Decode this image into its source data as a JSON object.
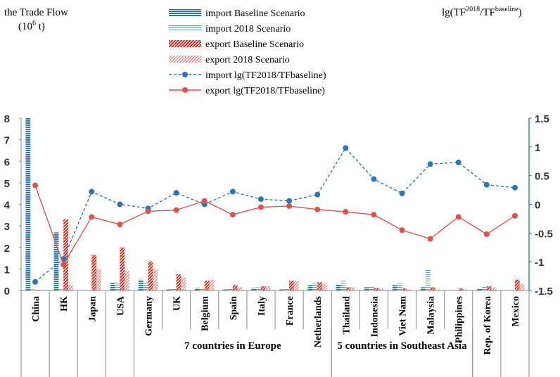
{
  "chart_data": {
    "type": "bar",
    "left_axis_title_line1": "the Trade Flow",
    "left_axis_title_line2": "(10",
    "left_axis_title_sup": "6",
    "left_axis_title_line2_end": " t)",
    "right_axis_title_pre": "lg(TF",
    "right_axis_title_sup1": "2018",
    "right_axis_title_mid": "/TF",
    "right_axis_title_sup2": "baseline",
    "right_axis_title_post": ")",
    "categories": [
      "China",
      "HK",
      "Japan",
      "USA",
      "Germany",
      "UK",
      "Belgium",
      "Spain",
      "Italy",
      "France",
      "Netherlands",
      "Thailand",
      "Indonesia",
      "Viet Nam",
      "Malaysia",
      "Philippines",
      "Rep. of Korea",
      "Mexico"
    ],
    "ylim_left": [
      0,
      8
    ],
    "yticks_left": [
      "0",
      "1",
      "2",
      "3",
      "4",
      "5",
      "6",
      "7",
      "8"
    ],
    "ylim_right": [
      -1.5,
      1.5
    ],
    "yticks_right": [
      "-1.5",
      "-1",
      "-0.5",
      "0",
      "0.5",
      "1",
      "1.5"
    ],
    "series": [
      {
        "name": "import Baseline Scenario",
        "kind": "bar",
        "color": "#2e75b6",
        "pattern": "hstripe-dense",
        "values": [
          8.0,
          2.7,
          0.0,
          0.35,
          0.5,
          0.05,
          0.12,
          0.05,
          0.12,
          0.05,
          0.25,
          0.3,
          0.15,
          0.25,
          0.15,
          0.0,
          0.1,
          0.0
        ]
      },
      {
        "name": "import 2018 Scenario",
        "kind": "bar",
        "color": "#5b9bd5",
        "pattern": "hstripe-light",
        "values": [
          0.05,
          0.05,
          0.0,
          0.35,
          0.4,
          0.08,
          0.1,
          0.07,
          0.15,
          0.08,
          0.35,
          0.5,
          0.22,
          0.35,
          0.95,
          0.0,
          0.2,
          0.0
        ]
      },
      {
        "name": "export Baseline Scenario",
        "kind": "bar",
        "color": "#c0392b",
        "pattern": "diag-dense",
        "values": [
          0.03,
          3.3,
          1.65,
          2.0,
          1.35,
          0.75,
          0.45,
          0.25,
          0.2,
          0.45,
          0.38,
          0.15,
          0.12,
          0.1,
          0.15,
          0.1,
          0.2,
          0.5
        ]
      },
      {
        "name": "export 2018 Scenario",
        "kind": "bar",
        "color": "#e57373",
        "pattern": "diag-light",
        "values": [
          0.02,
          0.25,
          1.0,
          0.9,
          1.0,
          0.6,
          0.5,
          0.15,
          0.2,
          0.45,
          0.3,
          0.15,
          0.08,
          0.05,
          0.05,
          0.05,
          0.15,
          0.3
        ]
      },
      {
        "name": "import lg(TF2018/TFbaseline)",
        "kind": "line",
        "axis": "right",
        "color": "#2e75b6",
        "dash": true,
        "values": [
          -1.35,
          -0.95,
          0.22,
          0.0,
          -0.07,
          0.2,
          0.0,
          0.22,
          0.09,
          0.06,
          0.17,
          0.98,
          0.44,
          0.19,
          0.7,
          0.73,
          0.34,
          0.29
        ]
      },
      {
        "name": "export lg(TF2018/TFbaseline)",
        "kind": "line",
        "axis": "right",
        "color": "#d9534f",
        "dash": false,
        "values": [
          0.33,
          -1.05,
          -0.22,
          -0.35,
          -0.12,
          -0.1,
          0.06,
          -0.18,
          -0.05,
          -0.03,
          -0.09,
          -0.13,
          -0.18,
          -0.45,
          -0.6,
          -0.22,
          -0.52,
          -0.2
        ]
      }
    ],
    "groups": [
      {
        "label": "7 countries in Europe",
        "from": 4,
        "to": 10
      },
      {
        "label": "5 countries in Southeast Asia",
        "from": 11,
        "to": 15
      }
    ]
  }
}
